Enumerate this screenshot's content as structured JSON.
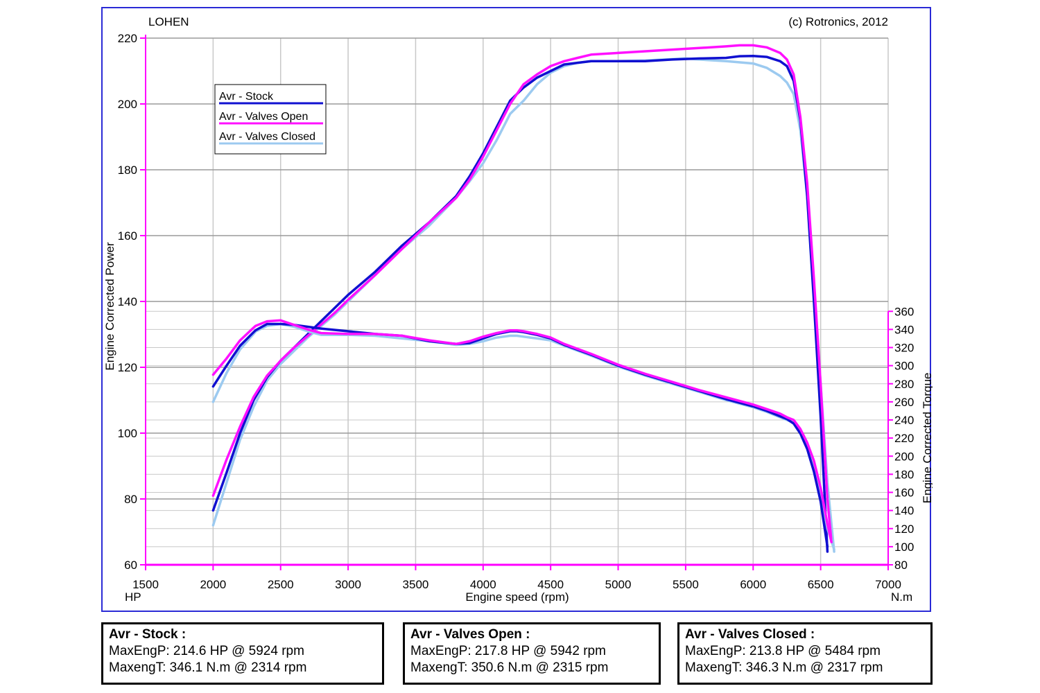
{
  "header": {
    "left_text": "LOHEN",
    "right_text": "(c) Rotronics, 2012"
  },
  "colors": {
    "stock": "#1010d0",
    "valves_open": "#ff10ff",
    "valves_closed": "#9ccaf0",
    "axis": "#ff00ff",
    "grid": "#c8c8c8",
    "frame": "#2a2ad6"
  },
  "chart_data": {
    "type": "line",
    "xlabel": "Engine speed (rpm)",
    "x_unit_left": "HP",
    "x_unit_right": "N.m",
    "ylabel_left": "Engine Corrected Power",
    "ylabel_right": "Engine Corrected Torque",
    "xlim": [
      1500,
      7000
    ],
    "x_ticks": [
      1500,
      2000,
      2500,
      3000,
      3500,
      4000,
      4500,
      5000,
      5500,
      6000,
      6500,
      7000
    ],
    "ylim_left": [
      60,
      220
    ],
    "y_ticks_left": [
      60,
      80,
      100,
      120,
      140,
      160,
      180,
      200,
      220
    ],
    "ylim_right": [
      80,
      360
    ],
    "y_ticks_right": [
      80,
      100,
      120,
      140,
      160,
      180,
      200,
      220,
      240,
      260,
      280,
      300,
      320,
      340,
      360
    ],
    "grid": true,
    "legend_position": "top-left",
    "legend": [
      "Avr - Stock",
      "Avr - Valves Open",
      "Avr - Valves Closed"
    ],
    "series": [
      {
        "name": "Avr - Stock",
        "measure": "power",
        "x": [
          2000,
          2100,
          2200,
          2300,
          2400,
          2500,
          2600,
          2700,
          2800,
          2900,
          3000,
          3200,
          3400,
          3600,
          3800,
          3900,
          4000,
          4100,
          4200,
          4300,
          4400,
          4500,
          4600,
          4700,
          4800,
          5000,
          5200,
          5400,
          5600,
          5800,
          5900,
          6000,
          6100,
          6200,
          6250,
          6300,
          6350,
          6400,
          6450,
          6500,
          6550
        ],
        "y": [
          76.5,
          88,
          100,
          110,
          117,
          122,
          126,
          130,
          134,
          138,
          142,
          149,
          157,
          164,
          172,
          178,
          185,
          193,
          201,
          205,
          208,
          210,
          212,
          212.5,
          213,
          213,
          213,
          213.5,
          213.8,
          214,
          214.5,
          214.6,
          214.3,
          213,
          211.5,
          207,
          195,
          172,
          140,
          105,
          64
        ]
      },
      {
        "name": "Avr - Valves Open",
        "measure": "power",
        "x": [
          2000,
          2100,
          2200,
          2300,
          2400,
          2500,
          2600,
          2700,
          2800,
          2900,
          3000,
          3200,
          3400,
          3600,
          3800,
          3900,
          4000,
          4100,
          4200,
          4300,
          4400,
          4500,
          4600,
          4700,
          4800,
          5000,
          5200,
          5400,
          5600,
          5800,
          5900,
          6000,
          6100,
          6200,
          6250,
          6300,
          6350,
          6400,
          6450,
          6500,
          6550,
          6580
        ],
        "y": [
          81,
          92,
          102,
          111,
          117.5,
          122,
          126,
          129.5,
          133,
          136.5,
          140.5,
          148,
          156,
          164,
          171.5,
          177,
          184,
          192,
          200,
          206,
          209,
          211.5,
          213,
          214,
          215,
          215.5,
          216,
          216.5,
          217,
          217.5,
          217.8,
          217.8,
          217.2,
          215.5,
          213.5,
          209,
          196,
          176,
          147,
          115,
          80,
          67
        ]
      },
      {
        "name": "Avr - Valves Closed",
        "measure": "power",
        "x": [
          2000,
          2100,
          2200,
          2300,
          2400,
          2500,
          2600,
          2700,
          2800,
          2900,
          3000,
          3200,
          3400,
          3600,
          3800,
          3900,
          4000,
          4100,
          4200,
          4300,
          4400,
          4500,
          4600,
          4700,
          4800,
          5000,
          5200,
          5400,
          5500,
          5600,
          5800,
          6000,
          6100,
          6200,
          6250,
          6300,
          6350,
          6400,
          6450,
          6500,
          6550,
          6600
        ],
        "y": [
          72,
          85,
          98,
          108,
          116,
          121,
          125,
          129,
          132.5,
          136,
          140,
          148,
          156,
          163,
          171.5,
          176.5,
          182,
          189,
          197,
          201,
          206,
          209.5,
          211.5,
          212.5,
          213,
          213,
          213.2,
          213.6,
          213.8,
          213.5,
          213,
          212.3,
          211,
          208.5,
          206.5,
          203,
          192,
          172,
          145,
          115,
          85,
          64
        ]
      },
      {
        "name": "Avr - Stock",
        "measure": "torque",
        "x": [
          2000,
          2100,
          2200,
          2300,
          2314,
          2400,
          2500,
          2600,
          2700,
          2800,
          3000,
          3200,
          3400,
          3600,
          3800,
          3900,
          4000,
          4100,
          4200,
          4250,
          4300,
          4400,
          4500,
          4600,
          4800,
          5000,
          5200,
          5400,
          5600,
          5800,
          6000,
          6100,
          6200,
          6250,
          6300,
          6350,
          6400,
          6450,
          6500,
          6550
        ],
        "y": [
          277,
          300,
          322,
          337,
          339,
          346,
          346,
          345,
          343,
          341,
          338,
          335,
          333,
          327,
          324,
          325,
          330,
          335,
          338,
          338,
          337,
          334,
          330,
          323,
          312,
          300,
          290,
          281,
          272,
          263,
          255,
          250,
          244,
          241,
          236,
          225,
          208,
          183,
          150,
          100
        ]
      },
      {
        "name": "Avr - Valves Open",
        "measure": "torque",
        "x": [
          2000,
          2100,
          2200,
          2300,
          2315,
          2400,
          2500,
          2600,
          2700,
          2800,
          3000,
          3200,
          3400,
          3600,
          3800,
          3900,
          4000,
          4100,
          4200,
          4250,
          4300,
          4400,
          4500,
          4600,
          4800,
          5000,
          5200,
          5400,
          5600,
          5800,
          6000,
          6100,
          6200,
          6250,
          6300,
          6350,
          6400,
          6450,
          6500,
          6550,
          6580
        ],
        "y": [
          290,
          308,
          328,
          342,
          344,
          349,
          350,
          345,
          340,
          336,
          335,
          335,
          333,
          328,
          324,
          327,
          332,
          336,
          339,
          339,
          338,
          335,
          331,
          324,
          313,
          301,
          291,
          282,
          273,
          265,
          257,
          252,
          247,
          243,
          240,
          230,
          215,
          195,
          165,
          125,
          105
        ]
      },
      {
        "name": "Avr - Valves Closed",
        "measure": "torque",
        "x": [
          2000,
          2100,
          2200,
          2300,
          2317,
          2400,
          2500,
          2600,
          2700,
          2800,
          3000,
          3200,
          3400,
          3600,
          3800,
          3900,
          4000,
          4100,
          4200,
          4250,
          4300,
          4400,
          4500,
          4600,
          4800,
          5000,
          5200,
          5400,
          5600,
          5800,
          6000,
          6100,
          6200,
          6250,
          6300,
          6350,
          6400,
          6450,
          6500,
          6550,
          6600
        ],
        "y": [
          260,
          292,
          318,
          335,
          338,
          344,
          346,
          343,
          338,
          334,
          334,
          333,
          330,
          327,
          323,
          324,
          327,
          331,
          333,
          333,
          332,
          330,
          328,
          322,
          311,
          299,
          289,
          280,
          271,
          262,
          254,
          249,
          243,
          240,
          237,
          228,
          212,
          190,
          160,
          120,
          97
        ]
      }
    ]
  },
  "summaries": [
    {
      "title": "Avr - Stock :",
      "power_line": "MaxEngP: 214.6 HP @ 5924 rpm",
      "torque_line": "MaxengT: 346.1 N.m @ 2314 rpm"
    },
    {
      "title": "Avr - Valves Open :",
      "power_line": "MaxEngP: 217.8 HP @ 5942 rpm",
      "torque_line": "MaxengT: 350.6 N.m @ 2315 rpm"
    },
    {
      "title": "Avr - Valves Closed :",
      "power_line": "MaxEngP: 213.8 HP @ 5484 rpm",
      "torque_line": "MaxengT: 346.3 N.m @ 2317 rpm"
    }
  ]
}
